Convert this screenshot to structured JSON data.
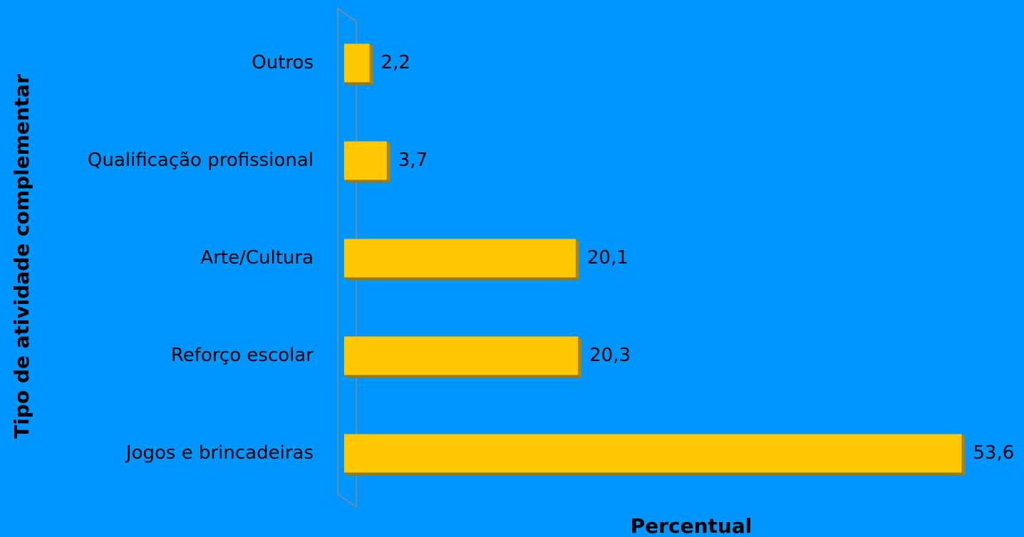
{
  "chart_data": {
    "type": "bar",
    "orientation": "horizontal",
    "x_label": "Percentual",
    "y_label": "Tipo de atividade complementar",
    "categories": [
      "Outros",
      "Qualificação profissional",
      "Arte/Cultura",
      "Reforço escolar",
      "Jogos e brincadeiras"
    ],
    "values": [
      2.2,
      3.7,
      20.1,
      20.3,
      53.6
    ],
    "value_labels": [
      "2,2",
      "3,7",
      "20,1",
      "20,3",
      "53,6"
    ],
    "color": "#ffc800",
    "xlim": [
      0,
      55
    ]
  }
}
